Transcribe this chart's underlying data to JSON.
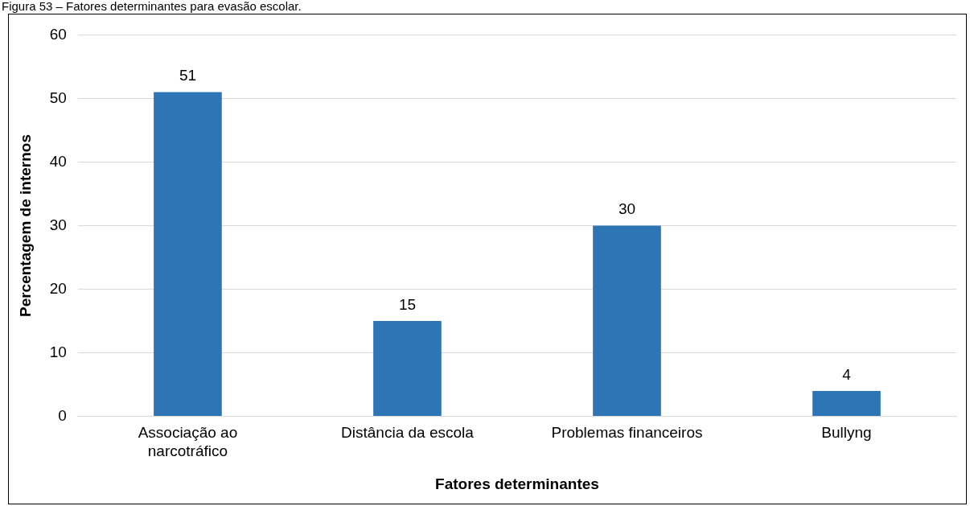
{
  "chart_data": {
    "type": "bar",
    "title": "Figura 53 – Fatores determinantes para evasão escolar.",
    "xlabel": "Fatores determinantes",
    "ylabel": "Percentagem de internos",
    "categories": [
      "Associação ao narcotráfico",
      "Distância da escola",
      "Problemas financeiros",
      "Bullyng"
    ],
    "values": [
      51,
      15,
      30,
      4
    ],
    "color": "#2e75b6",
    "data_labels": true,
    "ylim": [
      0,
      60
    ],
    "yticks": [
      0,
      10,
      20,
      30,
      40,
      50,
      60
    ],
    "grid": "y",
    "legend": false
  }
}
